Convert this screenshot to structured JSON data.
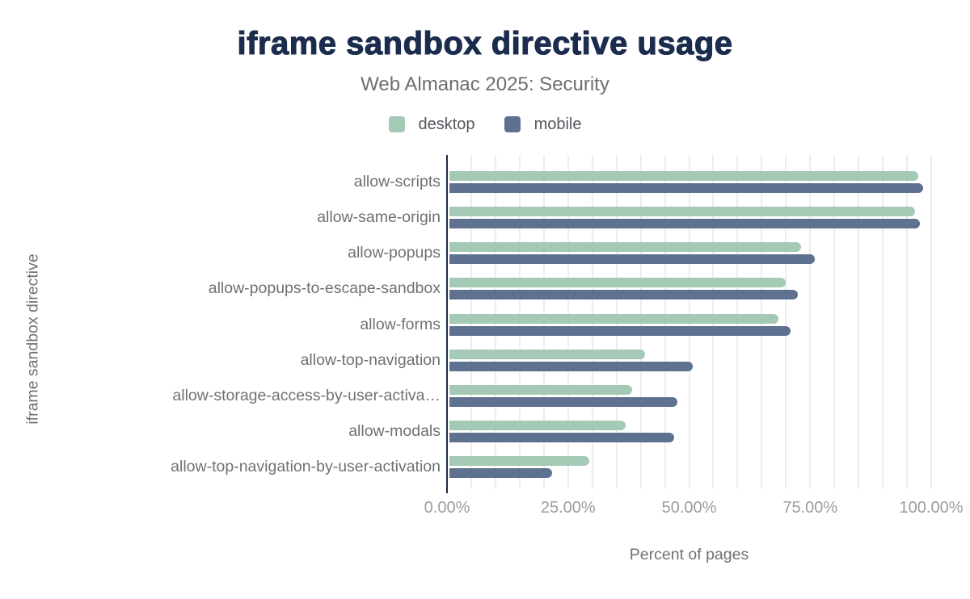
{
  "chart_data": {
    "type": "bar",
    "orientation": "horizontal",
    "title": "iframe sandbox directive usage",
    "subtitle": "Web Almanac 2025: Security",
    "xlabel": "Percent of pages",
    "ylabel": "iframe sandbox directive",
    "categories": [
      "allow-scripts",
      "allow-same-origin",
      "allow-popups",
      "allow-popups-to-escape-sandbox",
      "allow-forms",
      "allow-top-navigation",
      "allow-storage-access-by-user-activa…",
      "allow-modals",
      "allow-top-navigation-by-user-activation"
    ],
    "series": [
      {
        "name": "desktop",
        "color": "#a4c9b5",
        "values": [
          97.4,
          96.6,
          73.2,
          69.9,
          68.5,
          40.9,
          38.2,
          36.9,
          29.3
        ]
      },
      {
        "name": "mobile",
        "color": "#5e7190",
        "values": [
          98.4,
          97.7,
          76.0,
          72.4,
          71.0,
          50.7,
          47.6,
          46.9,
          21.7
        ]
      }
    ],
    "xlim": [
      0,
      100
    ],
    "xticks": [
      {
        "value": 0,
        "label": "0.00%"
      },
      {
        "value": 25,
        "label": "25.00%"
      },
      {
        "value": 50,
        "label": "50.00%"
      },
      {
        "value": 75,
        "label": "75.00%"
      },
      {
        "value": 100,
        "label": "100.00%"
      }
    ],
    "grid": {
      "visible": true,
      "minor_step_percent": 5
    },
    "legend_position": "top",
    "colors": {
      "axis_line": "#1b2c45",
      "gridline": "#ededed",
      "title_text": "#1b2c4e",
      "subtitle_text": "#6b6e72",
      "axis_label_text": "#6e7175",
      "tick_label_text": "#9a9da1",
      "legend_text": "#54575c"
    }
  }
}
